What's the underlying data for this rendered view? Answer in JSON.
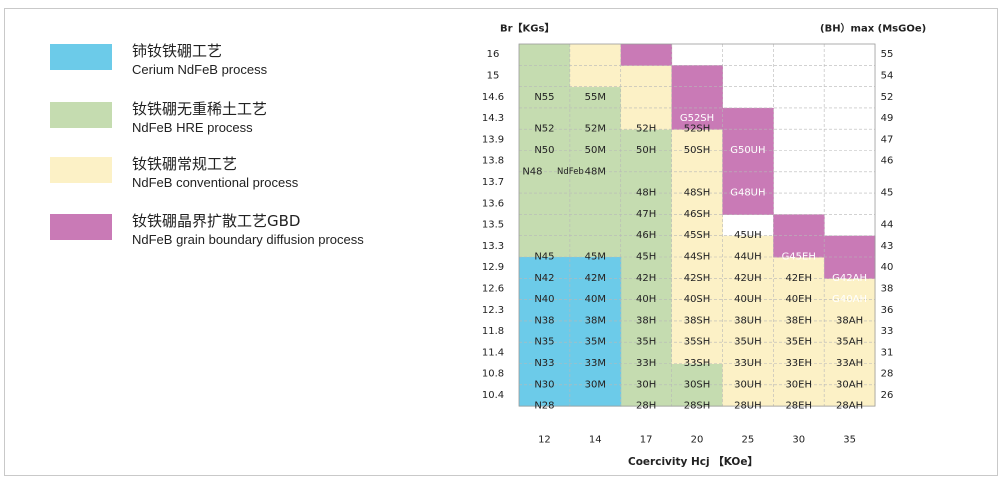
{
  "colors": {
    "cerium": "#6ccbe9",
    "hre_free": "#c5dcb0",
    "conventional": "#fcf1c6",
    "gbd": "#c97ab6",
    "white": "#ffffff",
    "grid": "#b8b8b8"
  },
  "legend": [
    {
      "cn": "铈钕铁硼工艺",
      "en": "Cerium NdFeB process",
      "color": "cerium"
    },
    {
      "cn": "钕铁硼无重稀土工艺",
      "en": "NdFeB HRE process",
      "color": "hre_free"
    },
    {
      "cn": "钕铁硼常规工艺",
      "en": "NdFeB conventional process",
      "color": "conventional"
    },
    {
      "cn": "钕铁硼晶界扩散工艺GBD",
      "en": "NdFeB grain boundary diffusion process",
      "color": "gbd"
    }
  ],
  "chart_data": {
    "type": "table",
    "title_left": "Br【KGs】",
    "title_right": "(BH）max (MsGOe)",
    "xlabel": "Coercivity  Hcj 【KOe】",
    "columns": [
      "12",
      "14",
      "17",
      "20",
      "25",
      "30",
      "35"
    ],
    "rows": [
      {
        "br": "16",
        "bh": "55"
      },
      {
        "br": "15",
        "bh": "54"
      },
      {
        "br": "14.6",
        "bh": "52"
      },
      {
        "br": "14.3",
        "bh": "49"
      },
      {
        "br": "13.9",
        "bh": "47"
      },
      {
        "br": "13.8",
        "bh": "46"
      },
      {
        "br": "13.7",
        "bh": "45"
      },
      {
        "br": "13.6",
        "bh": ""
      },
      {
        "br": "13.5",
        "bh": "44"
      },
      {
        "br": "13.3",
        "bh": "43"
      },
      {
        "br": "12.9",
        "bh": "40"
      },
      {
        "br": "12.6",
        "bh": "38"
      },
      {
        "br": "12.3",
        "bh": "36"
      },
      {
        "br": "11.8",
        "bh": "33"
      },
      {
        "br": "11.4",
        "bh": "31"
      },
      {
        "br": "10.8",
        "bh": "28"
      },
      {
        "br": "10.4",
        "bh": "26"
      }
    ],
    "regions": [
      {
        "cat": "hre_free",
        "col": 0,
        "row": 0,
        "cols": 1,
        "rows": 10
      },
      {
        "cat": "hre_free",
        "col": 1,
        "row": 2,
        "cols": 1,
        "rows": 8
      },
      {
        "cat": "hre_free",
        "col": 2,
        "row": 4,
        "cols": 1,
        "rows": 8
      },
      {
        "cat": "hre_free",
        "col": 2,
        "row": 12,
        "cols": 1,
        "rows": 5
      },
      {
        "cat": "hre_free",
        "col": 3,
        "row": 15,
        "cols": 1,
        "rows": 2
      },
      {
        "cat": "cerium",
        "col": 0,
        "row": 10,
        "cols": 2,
        "rows": 7
      },
      {
        "cat": "conventional",
        "col": 1,
        "row": 0,
        "cols": 2,
        "rows": 2
      },
      {
        "cat": "conventional",
        "col": 2,
        "row": 2,
        "cols": 1,
        "rows": 2
      },
      {
        "cat": "conventional",
        "col": 3,
        "row": 4,
        "cols": 1,
        "rows": 11
      },
      {
        "cat": "conventional",
        "col": 4,
        "row": 9,
        "cols": 1,
        "rows": 8
      },
      {
        "cat": "conventional",
        "col": 5,
        "row": 10,
        "cols": 1,
        "rows": 7
      },
      {
        "cat": "conventional",
        "col": 6,
        "row": 11,
        "cols": 1,
        "rows": 6
      },
      {
        "cat": "gbd",
        "col": 2,
        "row": 0,
        "cols": 1,
        "rows": 1
      },
      {
        "cat": "gbd",
        "col": 3,
        "row": 1,
        "cols": 1,
        "rows": 3
      },
      {
        "cat": "gbd",
        "col": 4,
        "row": 3,
        "cols": 1,
        "rows": 5
      },
      {
        "cat": "gbd",
        "col": 5,
        "row": 8,
        "cols": 1,
        "rows": 2
      },
      {
        "cat": "gbd",
        "col": 6,
        "row": 9,
        "cols": 1,
        "rows": 2
      }
    ],
    "grades": [
      {
        "label": "N55",
        "col": 0,
        "row": 2,
        "color": "dark"
      },
      {
        "label": "55M",
        "col": 1,
        "row": 2,
        "color": "dark"
      },
      {
        "label": "N52",
        "col": 0,
        "row": 3.5,
        "color": "dark"
      },
      {
        "label": "52M",
        "col": 1,
        "row": 3.5,
        "color": "dark"
      },
      {
        "label": "52H",
        "col": 2,
        "row": 3.5,
        "color": "dark"
      },
      {
        "label": "52SH",
        "col": 3,
        "row": 3.5,
        "color": "dark"
      },
      {
        "label": "G52SH",
        "col": 3,
        "row": 3,
        "color": "light"
      },
      {
        "label": "N50",
        "col": 0,
        "row": 4.5,
        "color": "dark"
      },
      {
        "label": "50M",
        "col": 1,
        "row": 4.5,
        "color": "dark"
      },
      {
        "label": "50H",
        "col": 2,
        "row": 4.5,
        "color": "dark"
      },
      {
        "label": "50SH",
        "col": 3,
        "row": 4.5,
        "color": "dark"
      },
      {
        "label": "G50UH",
        "col": 4,
        "row": 4.5,
        "color": "light"
      },
      {
        "label": "N48",
        "col": 0,
        "row": 5.5,
        "color": "dark",
        "dx": -12
      },
      {
        "label": "NdFeb",
        "col": 0,
        "row": 5.5,
        "color": "dark",
        "dx": 26,
        "small": true
      },
      {
        "label": "48M",
        "col": 1,
        "row": 5.5,
        "color": "dark"
      },
      {
        "label": "48H",
        "col": 2,
        "row": 6.5,
        "color": "dark"
      },
      {
        "label": "48SH",
        "col": 3,
        "row": 6.5,
        "color": "dark"
      },
      {
        "label": "G48UH",
        "col": 4,
        "row": 6.5,
        "color": "light"
      },
      {
        "label": "47H",
        "col": 2,
        "row": 7.5,
        "color": "dark"
      },
      {
        "label": "46SH",
        "col": 3,
        "row": 7.5,
        "color": "dark"
      },
      {
        "label": "46H",
        "col": 2,
        "row": 8.5,
        "color": "dark"
      },
      {
        "label": "45SH",
        "col": 3,
        "row": 8.5,
        "color": "dark"
      },
      {
        "label": "45UH",
        "col": 4,
        "row": 8.5,
        "color": "dark"
      },
      {
        "label": "N45",
        "col": 0,
        "row": 9.5,
        "color": "dark"
      },
      {
        "label": "45M",
        "col": 1,
        "row": 9.5,
        "color": "dark"
      },
      {
        "label": "45H",
        "col": 2,
        "row": 9.5,
        "color": "dark"
      },
      {
        "label": "44SH",
        "col": 3,
        "row": 9.5,
        "color": "dark"
      },
      {
        "label": "44UH",
        "col": 4,
        "row": 9.5,
        "color": "dark"
      },
      {
        "label": "G45EH",
        "col": 5,
        "row": 9.5,
        "color": "light"
      },
      {
        "label": "N42",
        "col": 0,
        "row": 10.5,
        "color": "dark"
      },
      {
        "label": "42M",
        "col": 1,
        "row": 10.5,
        "color": "dark"
      },
      {
        "label": "42H",
        "col": 2,
        "row": 10.5,
        "color": "dark"
      },
      {
        "label": "42SH",
        "col": 3,
        "row": 10.5,
        "color": "dark"
      },
      {
        "label": "42UH",
        "col": 4,
        "row": 10.5,
        "color": "dark"
      },
      {
        "label": "42EH",
        "col": 5,
        "row": 10.5,
        "color": "dark"
      },
      {
        "label": "G42AH",
        "col": 6,
        "row": 10.5,
        "color": "light"
      },
      {
        "label": "N40",
        "col": 0,
        "row": 11.5,
        "color": "dark"
      },
      {
        "label": "40M",
        "col": 1,
        "row": 11.5,
        "color": "dark"
      },
      {
        "label": "40H",
        "col": 2,
        "row": 11.5,
        "color": "dark"
      },
      {
        "label": "40SH",
        "col": 3,
        "row": 11.5,
        "color": "dark"
      },
      {
        "label": "40UH",
        "col": 4,
        "row": 11.5,
        "color": "dark"
      },
      {
        "label": "40EH",
        "col": 5,
        "row": 11.5,
        "color": "dark"
      },
      {
        "label": "G40AH",
        "col": 6,
        "row": 11.5,
        "color": "light"
      },
      {
        "label": "N38",
        "col": 0,
        "row": 12.5,
        "color": "dark"
      },
      {
        "label": "38M",
        "col": 1,
        "row": 12.5,
        "color": "dark"
      },
      {
        "label": "38H",
        "col": 2,
        "row": 12.5,
        "color": "dark"
      },
      {
        "label": "38SH",
        "col": 3,
        "row": 12.5,
        "color": "dark"
      },
      {
        "label": "38UH",
        "col": 4,
        "row": 12.5,
        "color": "dark"
      },
      {
        "label": "38EH",
        "col": 5,
        "row": 12.5,
        "color": "dark"
      },
      {
        "label": "38AH",
        "col": 6,
        "row": 12.5,
        "color": "dark"
      },
      {
        "label": "N35",
        "col": 0,
        "row": 13.5,
        "color": "dark"
      },
      {
        "label": "35M",
        "col": 1,
        "row": 13.5,
        "color": "dark"
      },
      {
        "label": "35H",
        "col": 2,
        "row": 13.5,
        "color": "dark"
      },
      {
        "label": "35SH",
        "col": 3,
        "row": 13.5,
        "color": "dark"
      },
      {
        "label": "35UH",
        "col": 4,
        "row": 13.5,
        "color": "dark"
      },
      {
        "label": "35EH",
        "col": 5,
        "row": 13.5,
        "color": "dark"
      },
      {
        "label": "35AH",
        "col": 6,
        "row": 13.5,
        "color": "dark"
      },
      {
        "label": "N33",
        "col": 0,
        "row": 14.5,
        "color": "dark"
      },
      {
        "label": "33M",
        "col": 1,
        "row": 14.5,
        "color": "dark"
      },
      {
        "label": "33H",
        "col": 2,
        "row": 14.5,
        "color": "dark"
      },
      {
        "label": "33SH",
        "col": 3,
        "row": 14.5,
        "color": "dark"
      },
      {
        "label": "33UH",
        "col": 4,
        "row": 14.5,
        "color": "dark"
      },
      {
        "label": "33EH",
        "col": 5,
        "row": 14.5,
        "color": "dark"
      },
      {
        "label": "33AH",
        "col": 6,
        "row": 14.5,
        "color": "dark"
      },
      {
        "label": "N30",
        "col": 0,
        "row": 15.5,
        "color": "dark"
      },
      {
        "label": "30M",
        "col": 1,
        "row": 15.5,
        "color": "dark"
      },
      {
        "label": "30H",
        "col": 2,
        "row": 15.5,
        "color": "dark"
      },
      {
        "label": "30SH",
        "col": 3,
        "row": 15.5,
        "color": "dark"
      },
      {
        "label": "30UH",
        "col": 4,
        "row": 15.5,
        "color": "dark"
      },
      {
        "label": "30EH",
        "col": 5,
        "row": 15.5,
        "color": "dark"
      },
      {
        "label": "30AH",
        "col": 6,
        "row": 15.5,
        "color": "dark"
      },
      {
        "label": "N28",
        "col": 0,
        "row": 16.5,
        "color": "dark"
      },
      {
        "label": "28H",
        "col": 2,
        "row": 16.5,
        "color": "dark"
      },
      {
        "label": "28SH",
        "col": 3,
        "row": 16.5,
        "color": "dark"
      },
      {
        "label": "28UH",
        "col": 4,
        "row": 16.5,
        "color": "dark"
      },
      {
        "label": "28EH",
        "col": 5,
        "row": 16.5,
        "color": "dark"
      },
      {
        "label": "28AH",
        "col": 6,
        "row": 16.5,
        "color": "dark"
      }
    ]
  }
}
